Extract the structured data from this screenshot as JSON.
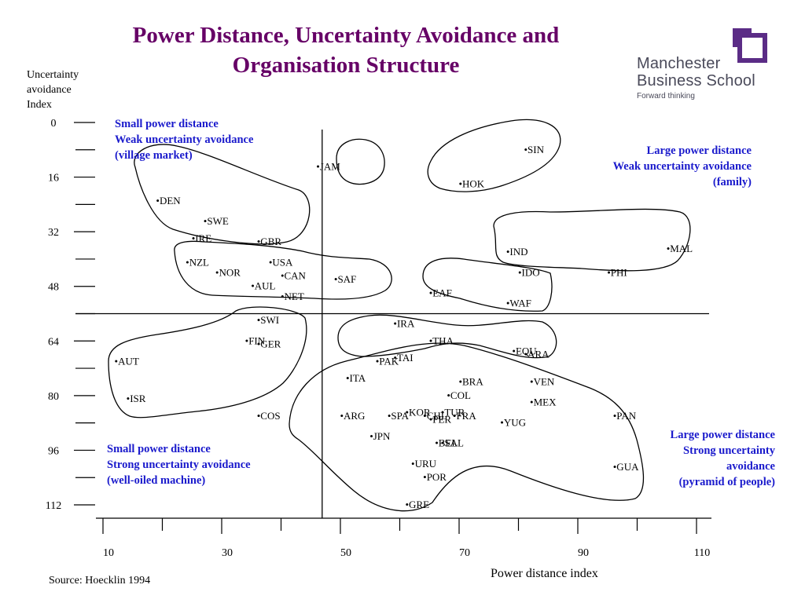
{
  "slide": {
    "title_line1": "Power Distance, Uncertainty Avoidance and",
    "title_line2": "Organisation Structure",
    "logo": {
      "line1": "Manchester",
      "line2": "Business School",
      "line3": "Forward thinking",
      "color": "#5b2c86"
    },
    "source": "Source: Hoecklin 1994",
    "colors": {
      "title": "#660066",
      "quadrant_text": "#1a1acc",
      "outline": "#000000"
    }
  },
  "quadrants": {
    "top_left": [
      "Small power distance",
      "Weak uncertainty avoidance",
      "(village market)"
    ],
    "top_right": [
      "Large power distance",
      "Weak uncertainty avoidance",
      "(family)"
    ],
    "bottom_left": [
      "Small power distance",
      "Strong uncertainty avoidance",
      "(well-oiled machine)"
    ],
    "bottom_right": [
      "Large power distance",
      "Strong uncertainty ",
      "avoidance",
      "(pyramid of people)"
    ]
  },
  "chart_data": {
    "type": "scatter",
    "title": "",
    "xlabel": "Power distance index",
    "ylabel_lines": [
      "Uncertainty",
      "avoidance",
      "Index"
    ],
    "x_ticks": [
      10,
      30,
      50,
      70,
      90,
      110
    ],
    "y_ticks": [
      0,
      16,
      32,
      48,
      64,
      80,
      96,
      112
    ],
    "y_reversed": true,
    "grid": false,
    "dividers": {
      "x": 46,
      "y": 56
    },
    "points": [
      {
        "label": "DEN",
        "x": 18,
        "y": 23
      },
      {
        "label": "SWE",
        "x": 26,
        "y": 29
      },
      {
        "label": "IRE",
        "x": 24,
        "y": 34
      },
      {
        "label": "GBR",
        "x": 35,
        "y": 35
      },
      {
        "label": "NZL",
        "x": 23,
        "y": 41
      },
      {
        "label": "NOR",
        "x": 28,
        "y": 44
      },
      {
        "label": "USA",
        "x": 37,
        "y": 41
      },
      {
        "label": "CAN",
        "x": 39,
        "y": 45
      },
      {
        "label": "AUL",
        "x": 34,
        "y": 48
      },
      {
        "label": "NET",
        "x": 39,
        "y": 51
      },
      {
        "label": "SAF",
        "x": 48,
        "y": 46
      },
      {
        "label": "JAM",
        "x": 45,
        "y": 13
      },
      {
        "label": "SIN",
        "x": 80,
        "y": 8
      },
      {
        "label": "HOK",
        "x": 69,
        "y": 18
      },
      {
        "label": "IND",
        "x": 77,
        "y": 38
      },
      {
        "label": "MAL",
        "x": 104,
        "y": 37
      },
      {
        "label": "IDO",
        "x": 79,
        "y": 44
      },
      {
        "label": "PHI",
        "x": 94,
        "y": 44
      },
      {
        "label": "EAF",
        "x": 64,
        "y": 50
      },
      {
        "label": "WAF",
        "x": 77,
        "y": 53
      },
      {
        "label": "SWI",
        "x": 35,
        "y": 58
      },
      {
        "label": "FIN",
        "x": 33,
        "y": 64
      },
      {
        "label": "GER",
        "x": 35,
        "y": 65
      },
      {
        "label": "AUT",
        "x": 11,
        "y": 70
      },
      {
        "label": "ISR",
        "x": 13,
        "y": 81
      },
      {
        "label": "IRA",
        "x": 58,
        "y": 59
      },
      {
        "label": "THA",
        "x": 64,
        "y": 64
      },
      {
        "label": "TAI",
        "x": 58,
        "y": 69
      },
      {
        "label": "PAK",
        "x": 55,
        "y": 70
      },
      {
        "label": "EQU",
        "x": 78,
        "y": 67
      },
      {
        "label": "ARA",
        "x": 80,
        "y": 68
      },
      {
        "label": "BRA",
        "x": 69,
        "y": 76
      },
      {
        "label": "COL",
        "x": 67,
        "y": 80
      },
      {
        "label": "VEN",
        "x": 81,
        "y": 76
      },
      {
        "label": "KOR",
        "x": 60,
        "y": 85
      },
      {
        "label": "ITA",
        "x": 50,
        "y": 75
      },
      {
        "label": "CHL",
        "x": 63,
        "y": 86
      },
      {
        "label": "TUR",
        "x": 66,
        "y": 85
      },
      {
        "label": "MEX",
        "x": 81,
        "y": 82
      },
      {
        "label": "COS",
        "x": 35,
        "y": 86
      },
      {
        "label": "SPA",
        "x": 57,
        "y": 86
      },
      {
        "label": "FRA",
        "x": 68,
        "y": 86
      },
      {
        "label": "YUG",
        "x": 76,
        "y": 88
      },
      {
        "label": "PAN",
        "x": 95,
        "y": 86
      },
      {
        "label": "ARG",
        "x": 49,
        "y": 86
      },
      {
        "label": "PER",
        "x": 64,
        "y": 87
      },
      {
        "label": "JPN",
        "x": 54,
        "y": 92
      },
      {
        "label": "BEL",
        "x": 65,
        "y": 94
      },
      {
        "label": "SAL",
        "x": 66,
        "y": 94
      },
      {
        "label": "URU",
        "x": 61,
        "y": 100
      },
      {
        "label": "POR",
        "x": 63,
        "y": 104
      },
      {
        "label": "GRE",
        "x": 60,
        "y": 112
      },
      {
        "label": "GUA",
        "x": 95,
        "y": 101
      }
    ]
  }
}
